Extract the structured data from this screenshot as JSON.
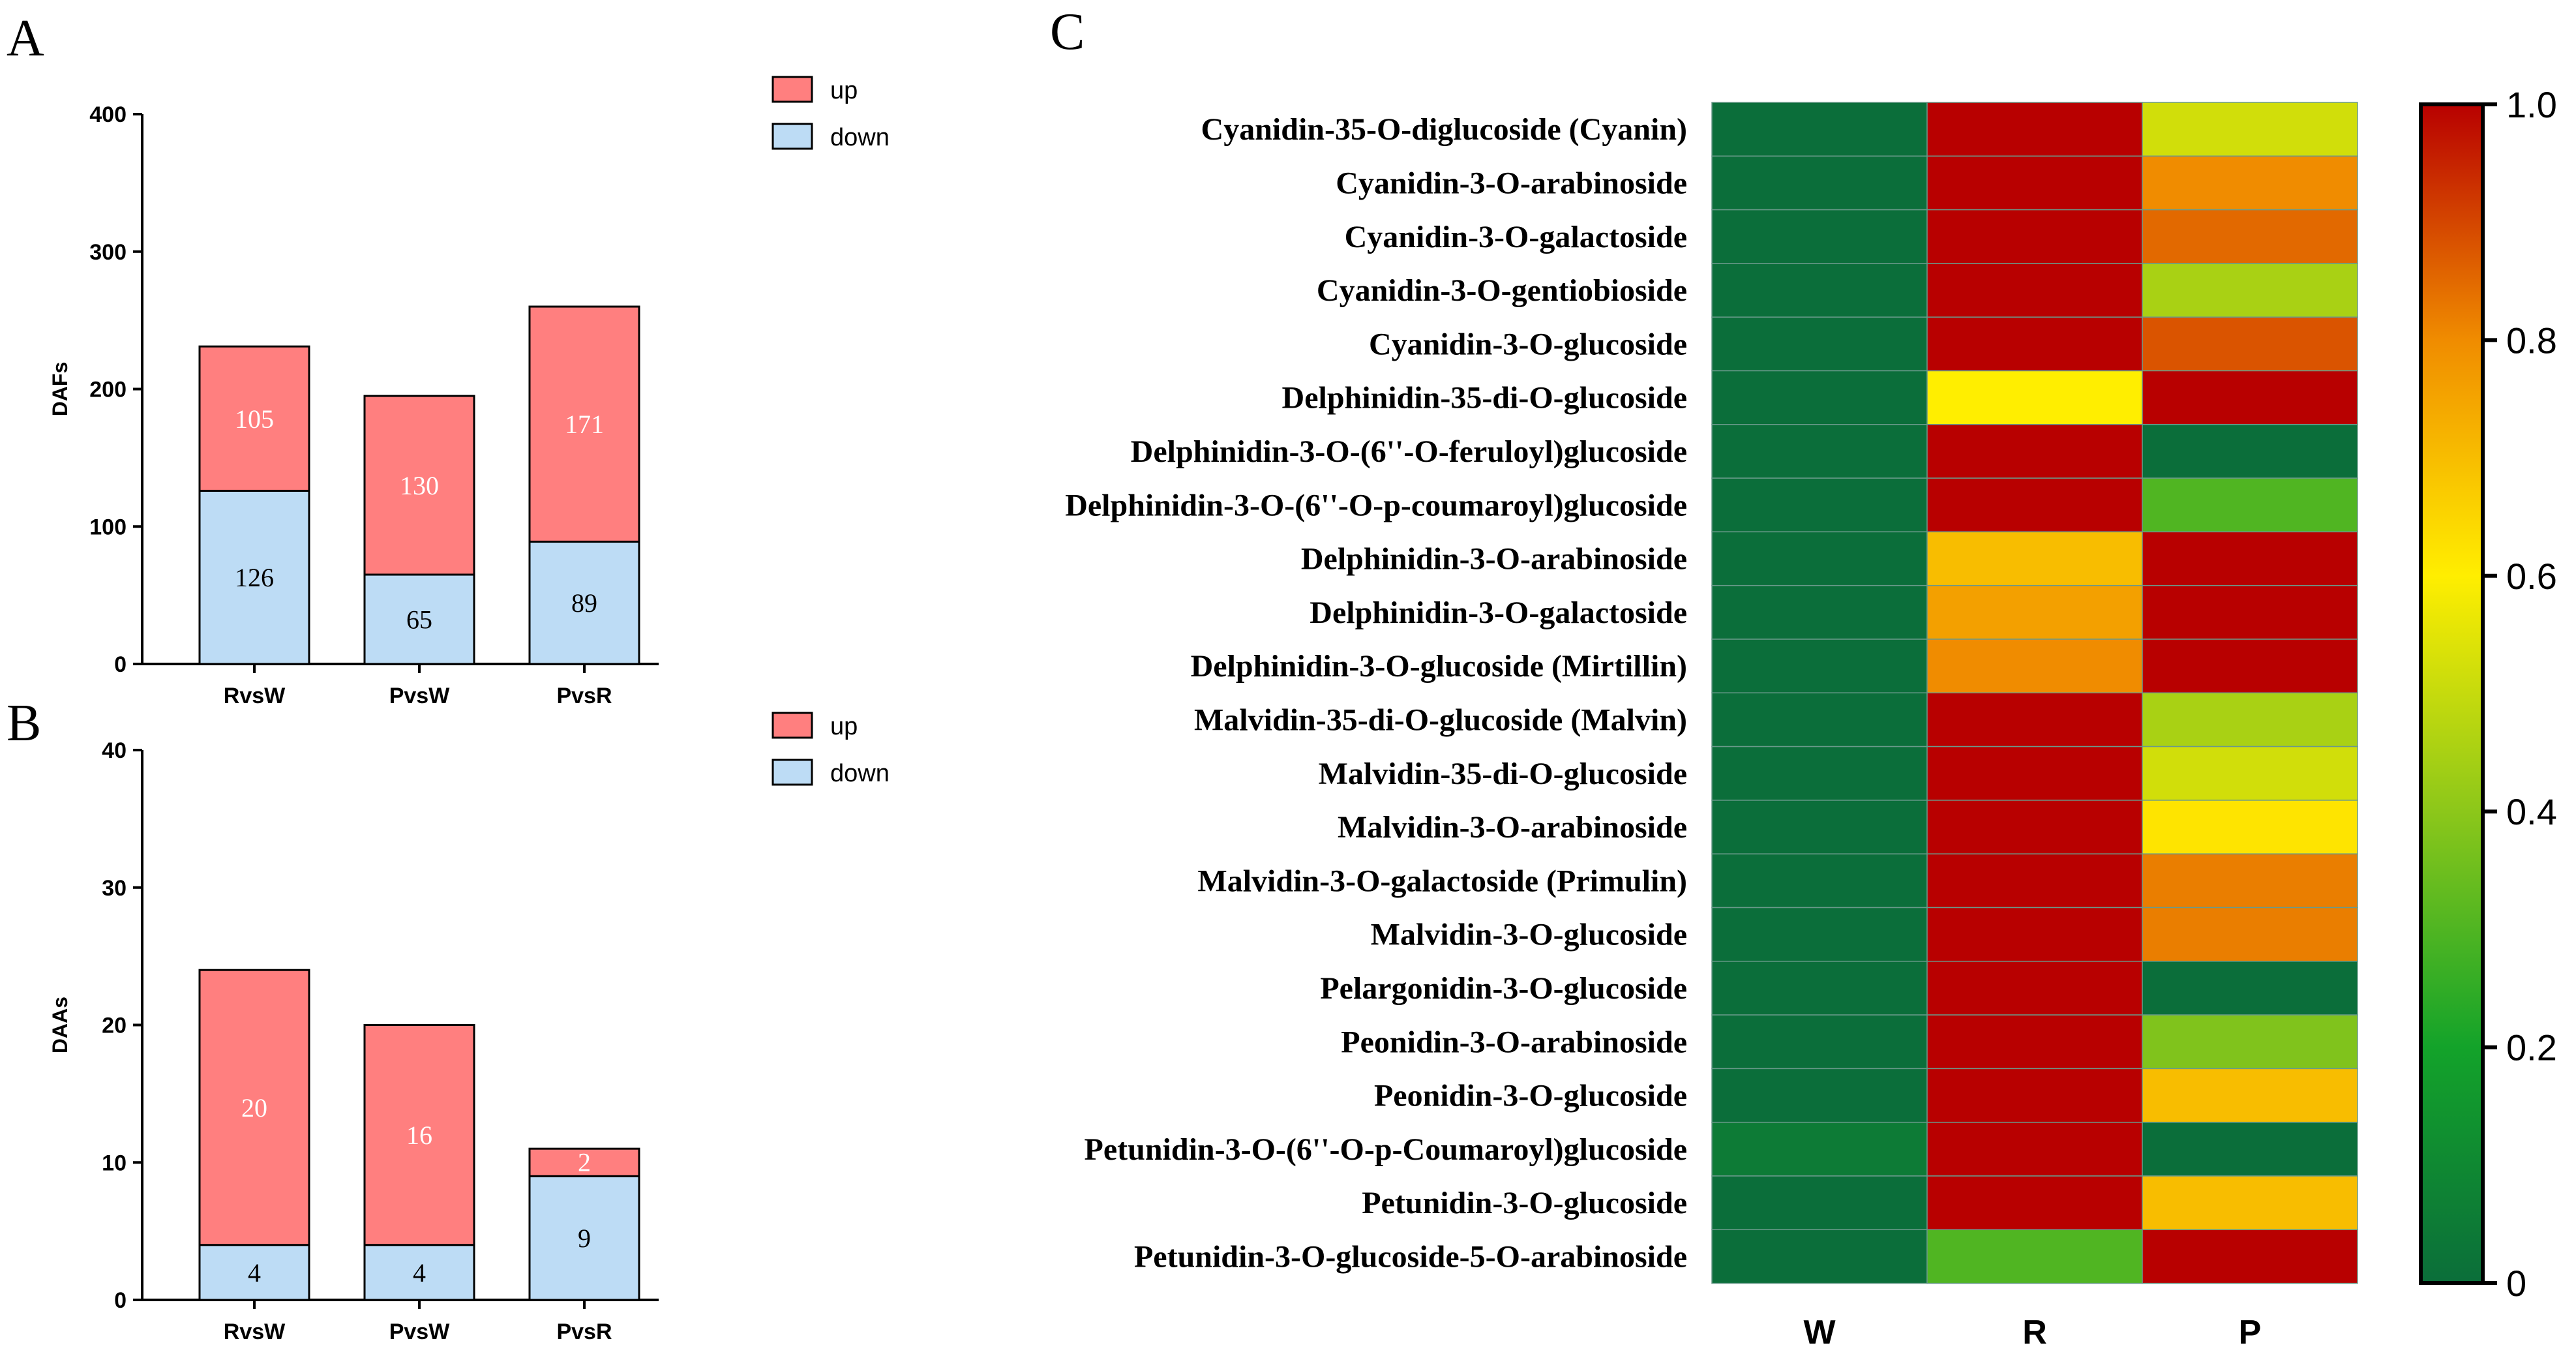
{
  "chart_data": [
    {
      "panel": "A",
      "type": "bar",
      "stacked": true,
      "categories": [
        "RvsW",
        "PvsW",
        "PvsR"
      ],
      "series": [
        {
          "name": "down",
          "color": "#bddcf5",
          "values": [
            126,
            65,
            89
          ],
          "labels": [
            "126",
            "65",
            "89"
          ]
        },
        {
          "name": "up",
          "color": "#ff7f7f",
          "values": [
            105,
            130,
            171
          ],
          "labels": [
            "105",
            "130",
            "171"
          ]
        }
      ],
      "ylabel": "DAFs",
      "ylim": [
        0,
        400
      ],
      "yticks": [
        "0",
        "100",
        "200",
        "300",
        "400"
      ],
      "legend": [
        "up",
        "down"
      ]
    },
    {
      "panel": "B",
      "type": "bar",
      "stacked": true,
      "categories": [
        "RvsW",
        "PvsW",
        "PvsR"
      ],
      "series": [
        {
          "name": "down",
          "color": "#bddcf5",
          "values": [
            4,
            4,
            9
          ],
          "labels": [
            "4",
            "4",
            "9"
          ]
        },
        {
          "name": "up",
          "color": "#ff7f7f",
          "values": [
            20,
            16,
            2
          ],
          "labels": [
            "20",
            "16",
            "2"
          ]
        }
      ],
      "ylabel": "DAAs",
      "ylim": [
        0,
        40
      ],
      "yticks": [
        "0",
        "10",
        "20",
        "30",
        "40"
      ],
      "legend": [
        "up",
        "down"
      ]
    },
    {
      "panel": "C",
      "type": "heatmap",
      "columns": [
        "W",
        "R",
        "P"
      ],
      "rows": [
        "Cyanidin-35-O-diglucoside (Cyanin)",
        "Cyanidin-3-O-arabinoside",
        "Cyanidin-3-O-galactoside",
        "Cyanidin-3-O-gentiobioside",
        "Cyanidin-3-O-glucoside",
        "Delphinidin-35-di-O-glucoside",
        "Delphinidin-3-O-(6''-O-feruloyl)glucoside",
        "Delphinidin-3-O-(6''-O-p-coumaroyl)glucoside",
        "Delphinidin-3-O-arabinoside",
        "Delphinidin-3-O-galactoside",
        "Delphinidin-3-O-glucoside (Mirtillin)",
        "Malvidin-35-di-O-glucoside (Malvin)",
        "Malvidin-35-di-O-glucoside",
        "Malvidin-3-O-arabinoside",
        "Malvidin-3-O-galactoside (Primulin)",
        "Malvidin-3-O-glucoside",
        "Pelargonidin-3-O-glucoside",
        "Peonidin-3-O-arabinoside",
        "Peonidin-3-O-glucoside",
        "Petunidin-3-O-(6''-O-p-Coumaroyl)glucoside",
        "Petunidin-3-O-glucoside",
        "Petunidin-3-O-glucoside-5-O-arabinoside"
      ],
      "values": [
        [
          0.0,
          1.0,
          0.52
        ],
        [
          0.0,
          1.0,
          0.8
        ],
        [
          0.0,
          1.0,
          0.85
        ],
        [
          0.0,
          1.0,
          0.45
        ],
        [
          0.0,
          1.0,
          0.88
        ],
        [
          0.0,
          0.6,
          1.0
        ],
        [
          0.0,
          1.0,
          0.0
        ],
        [
          0.0,
          1.0,
          0.3
        ],
        [
          0.0,
          0.7,
          1.0
        ],
        [
          0.0,
          0.76,
          1.0
        ],
        [
          0.0,
          0.8,
          1.0
        ],
        [
          0.0,
          1.0,
          0.45
        ],
        [
          0.0,
          1.0,
          0.52
        ],
        [
          0.0,
          1.0,
          0.62
        ],
        [
          0.0,
          1.0,
          0.82
        ],
        [
          0.0,
          1.0,
          0.82
        ],
        [
          0.0,
          1.0,
          0.0
        ],
        [
          0.0,
          1.0,
          0.38
        ],
        [
          0.0,
          1.0,
          0.7
        ],
        [
          0.05,
          1.0,
          0.0
        ],
        [
          0.0,
          1.0,
          0.7
        ],
        [
          0.0,
          0.3,
          1.0
        ]
      ],
      "colorbar": {
        "range": [
          0,
          1
        ],
        "ticks": [
          "0",
          "0.2",
          "0.4",
          "0.6",
          "0.8",
          "1.0"
        ],
        "colors": [
          "#0b6e3a",
          "#13a32a",
          "#8cc71a",
          "#ffee00",
          "#f08c00",
          "#b80000"
        ]
      }
    }
  ]
}
